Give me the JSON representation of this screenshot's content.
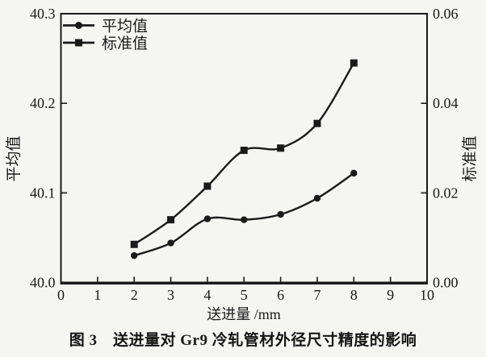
{
  "figure": {
    "caption": "图 3　送进量对 Gr9 冷轧管材外径尺寸精度的影响"
  },
  "chart_data": {
    "type": "line",
    "title": "",
    "xlabel": "送进量 /mm",
    "ylabel_left": "平均值",
    "ylabel_right": "标准值",
    "xlim": [
      0,
      10
    ],
    "xticks": [
      0,
      1,
      2,
      3,
      4,
      5,
      6,
      7,
      8,
      9,
      10
    ],
    "ylim_left": [
      40.0,
      40.3
    ],
    "yticks_left": [
      "40.0",
      "40.1",
      "40.2",
      "40.3"
    ],
    "ylim_right": [
      0.0,
      0.06
    ],
    "yticks_right": [
      "0.00",
      "0.02",
      "0.04",
      "0.06"
    ],
    "grid": false,
    "legend_position": "top-left",
    "line_color": "#1a1a1a",
    "x": [
      2,
      3,
      4,
      5,
      6,
      7,
      8
    ],
    "series": [
      {
        "name": "平均值",
        "axis": "left",
        "marker": "circle",
        "values": [
          40.03,
          40.044,
          40.071,
          40.07,
          40.076,
          40.094,
          40.122
        ]
      },
      {
        "name": "标准值",
        "axis": "right",
        "marker": "square",
        "values": [
          0.0085,
          0.014,
          0.0215,
          0.0295,
          0.03,
          0.0355,
          0.049
        ]
      }
    ]
  }
}
